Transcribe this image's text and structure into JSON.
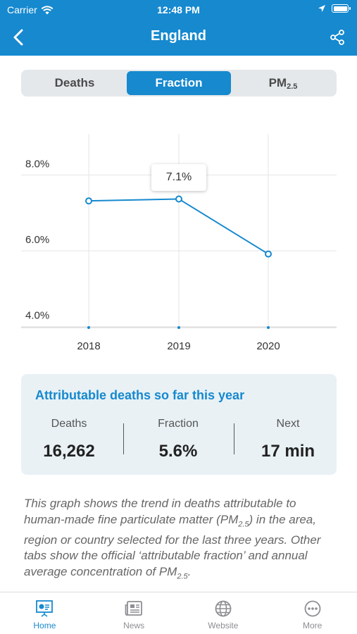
{
  "status_bar": {
    "carrier": "Carrier",
    "time": "12:48 PM"
  },
  "nav": {
    "title": "England",
    "back_icon": "chevron-left-icon",
    "share_icon": "share-icon"
  },
  "tabs_segment": {
    "items": [
      {
        "label": "Deaths",
        "active": false
      },
      {
        "label": "Fraction",
        "active": true
      },
      {
        "label_main": "PM",
        "label_sub": "2.5",
        "active": false
      }
    ]
  },
  "chart_data": {
    "type": "line",
    "categories": [
      "2018",
      "2019",
      "2020"
    ],
    "series": [
      {
        "values": [
          7.0,
          7.05,
          5.6
        ]
      }
    ],
    "y_ticks": [
      "8.0%",
      "6.0%",
      "4.0%"
    ],
    "y_tick_values": [
      8.0,
      6.0,
      4.0
    ],
    "ylim": [
      3.66,
      9.14
    ],
    "tooltip": {
      "category": "2019",
      "text": "7.1%"
    },
    "color": "#1689cf",
    "grid": true
  },
  "summary_card": {
    "title": "Attributable deaths so far this year",
    "stats": [
      {
        "label": "Deaths",
        "value": "16,262"
      },
      {
        "label": "Fraction",
        "value": "5.6%"
      },
      {
        "label": "Next",
        "value": "17 min"
      }
    ]
  },
  "description": {
    "part1": "This graph shows the trend in deaths attributable to human-made fine particulate matter (PM",
    "sub1": "2.5",
    "part2": ") in the area, region or country selected for the last three years. Other tabs show the official ‘attributable fraction’ and annual average concentration of PM",
    "sub2": "2.5",
    "part3": "."
  },
  "tabbar": {
    "items": [
      {
        "label": "Home",
        "icon": "presentation-board-icon",
        "active": true
      },
      {
        "label": "News",
        "icon": "newspaper-icon",
        "active": false
      },
      {
        "label": "Website",
        "icon": "globe-icon",
        "active": false
      },
      {
        "label": "More",
        "icon": "more-dots-icon",
        "active": false
      }
    ]
  },
  "colors": {
    "brand": "#1689cf",
    "card_bg": "#e9f1f5",
    "segment_bg": "#e4e8eb"
  }
}
